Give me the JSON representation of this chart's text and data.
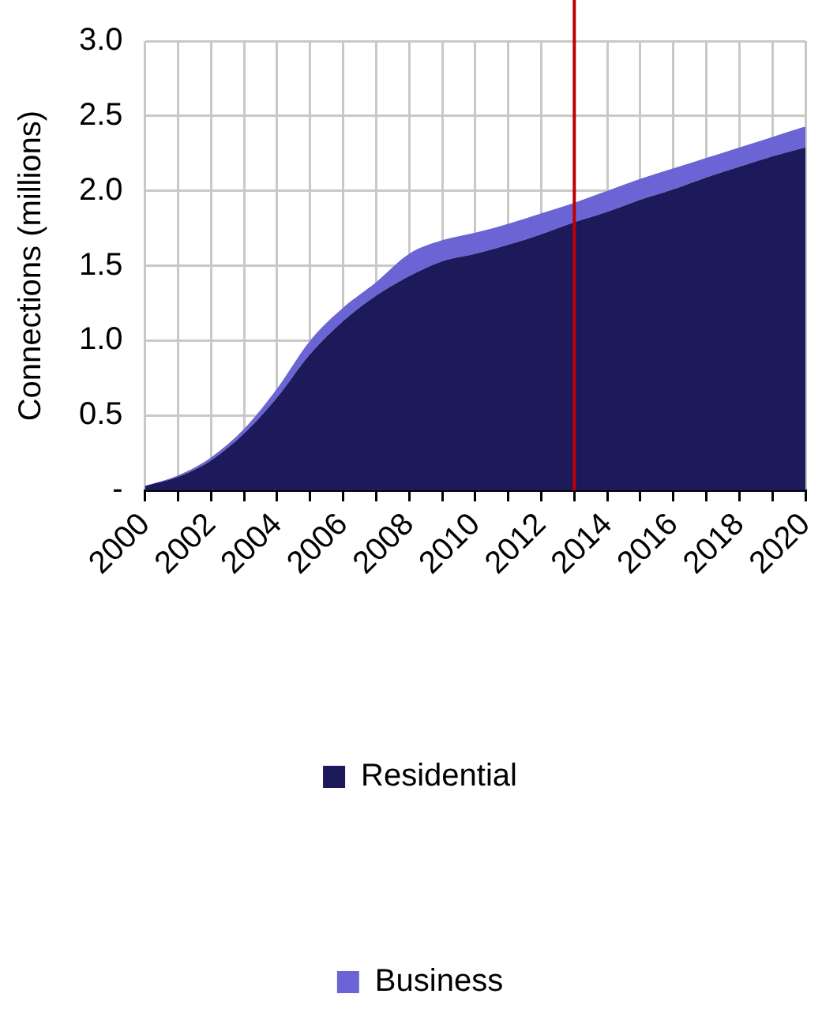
{
  "chart_data": {
    "type": "area",
    "stacked": true,
    "ylabel": "Connections (millions)",
    "x": [
      2000,
      2001,
      2002,
      2003,
      2004,
      2005,
      2006,
      2007,
      2008,
      2009,
      2010,
      2011,
      2012,
      2013,
      2014,
      2015,
      2016,
      2017,
      2018,
      2019,
      2020
    ],
    "series": [
      {
        "name": "Residential",
        "color": "#1c1a5a",
        "values": [
          0.03,
          0.09,
          0.2,
          0.38,
          0.62,
          0.91,
          1.13,
          1.3,
          1.43,
          1.53,
          1.58,
          1.64,
          1.71,
          1.79,
          1.86,
          1.94,
          2.01,
          2.09,
          2.16,
          2.23,
          2.29
        ]
      },
      {
        "name": "Business",
        "color": "#6a64d4",
        "values": [
          0,
          0.01,
          0.02,
          0.03,
          0.06,
          0.09,
          0.09,
          0.09,
          0.15,
          0.14,
          0.14,
          0.14,
          0.14,
          0.13,
          0.14,
          0.14,
          0.14,
          0.13,
          0.13,
          0.13,
          0.14
        ]
      }
    ],
    "xlim": [
      2000,
      2020
    ],
    "xticks": [
      2000,
      {
        "value": 2001,
        "label": null
      },
      2002,
      {
        "value": 2003,
        "label": null
      },
      2004,
      {
        "value": 2005,
        "label": null
      },
      2006,
      {
        "value": 2007,
        "label": null
      },
      2008,
      {
        "value": 2009,
        "label": null
      },
      2010,
      {
        "value": 2011,
        "label": null
      },
      2012,
      {
        "value": 2013,
        "label": null
      },
      2014,
      {
        "value": 2015,
        "label": null
      },
      2016,
      {
        "value": 2017,
        "label": null
      },
      2018,
      {
        "value": 2019,
        "label": null
      },
      2020
    ],
    "ylim": [
      0,
      3
    ],
    "yticks": [
      {
        "value": 0,
        "label": "-"
      },
      {
        "value": 0.5,
        "label": "0.5"
      },
      {
        "value": 1,
        "label": "1.0"
      },
      {
        "value": 1.5,
        "label": "1.5"
      },
      {
        "value": 2,
        "label": "2.0"
      },
      {
        "value": 2.5,
        "label": "2.5"
      },
      {
        "value": 3,
        "label": "3.0"
      }
    ],
    "ref_lines": [
      {
        "axis": "x",
        "value": 2013,
        "color": "#c00000"
      }
    ],
    "grid": true,
    "legend": "bottom"
  }
}
